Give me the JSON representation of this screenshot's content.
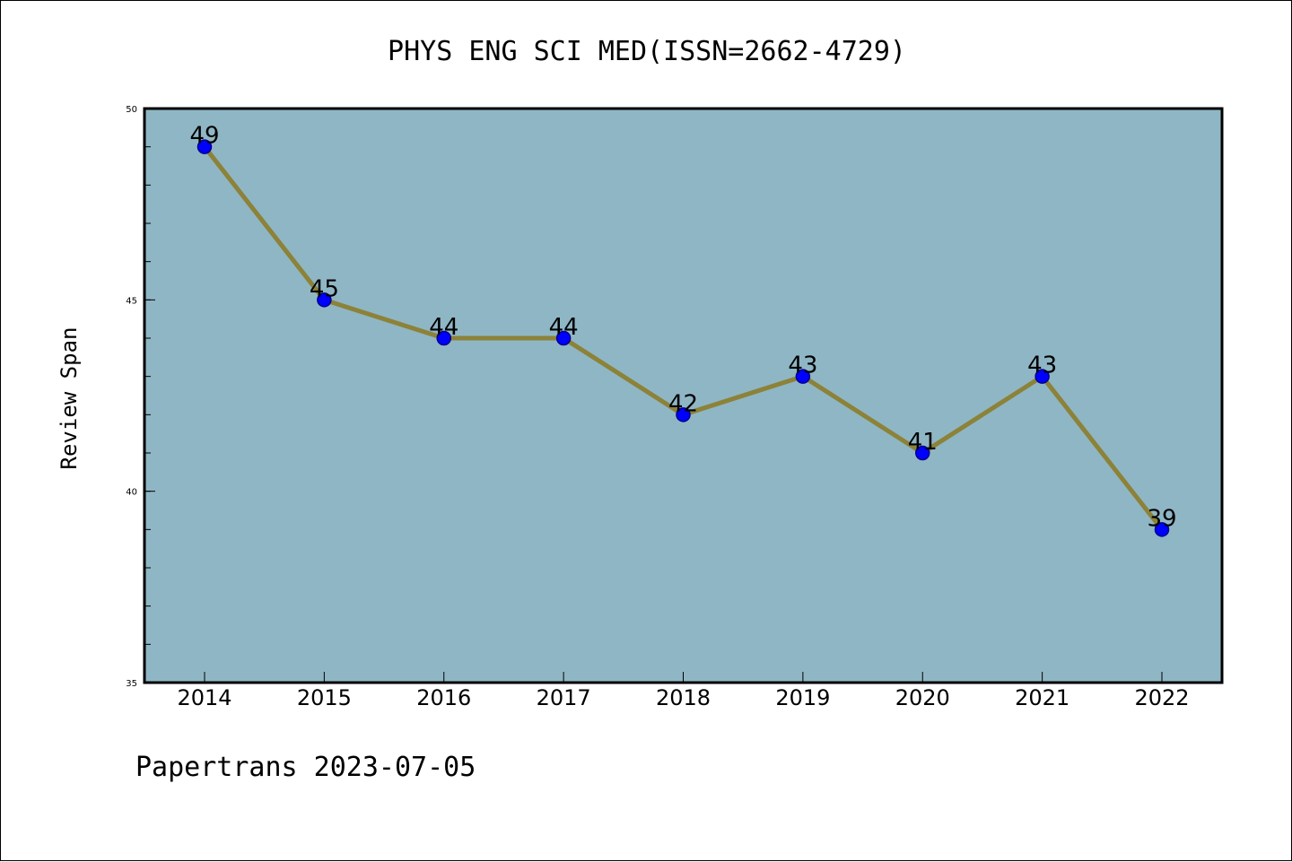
{
  "chart_data": {
    "type": "line",
    "title": "PHYS ENG SCI MED(ISSN=2662-4729)",
    "xlabel": "",
    "ylabel": "Review Span",
    "categories": [
      "2014",
      "2015",
      "2016",
      "2017",
      "2018",
      "2019",
      "2020",
      "2021",
      "2022"
    ],
    "series": [
      {
        "values": [
          49,
          45,
          44,
          44,
          42,
          43,
          41,
          43,
          39
        ]
      }
    ],
    "data_labels": [
      "49",
      "45",
      "44",
      "44",
      "42",
      "43",
      "41",
      "43",
      "39"
    ],
    "ylim": [
      35,
      50
    ],
    "yticks": [
      35,
      40,
      45,
      50
    ],
    "ytick_labels": [
      "35",
      "40",
      "45",
      "50"
    ],
    "grid": false,
    "legend": "none",
    "colors": {
      "plot_background": "#8fb6c5",
      "line": "#8c8238",
      "marker_fill": "#0000ff",
      "marker_edge": "#00008b",
      "axis": "#000000"
    }
  },
  "footer": {
    "text": "Papertrans 2023-07-05"
  }
}
